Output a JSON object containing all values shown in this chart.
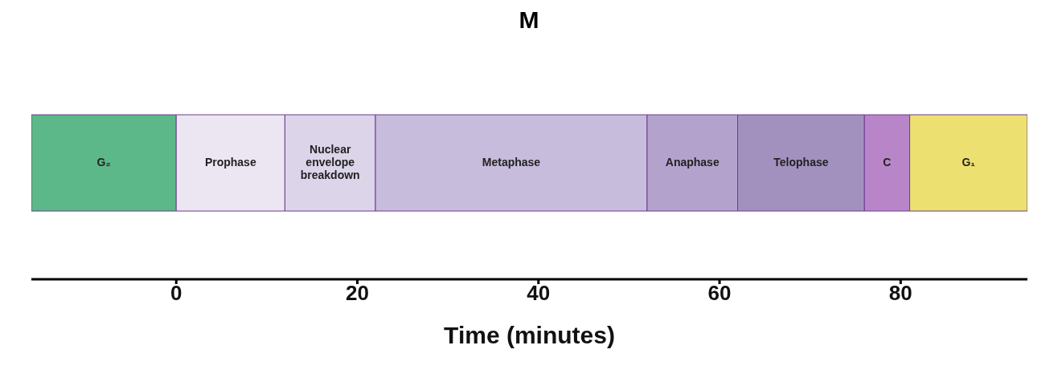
{
  "chart_data": {
    "type": "bar",
    "orientation": "horizontal",
    "title": "M",
    "xlabel": "Time (minutes)",
    "categories": [
      null
    ],
    "series": [
      {
        "name": "G₂",
        "color": "#5cb888",
        "values": [
          16
        ],
        "base": [
          -16
        ]
      },
      {
        "name": "Prophase",
        "color": "#ece6f2",
        "values": [
          12
        ],
        "base": [
          0
        ]
      },
      {
        "name": "Nuclear envelope breakdown",
        "color": "#dcd4e8",
        "values": [
          10
        ],
        "base": [
          12
        ]
      },
      {
        "name": "Metaphase",
        "color": "#c8bcdc",
        "values": [
          30
        ],
        "base": [
          22
        ]
      },
      {
        "name": "Anaphase",
        "color": "#b3a3cc",
        "values": [
          10
        ],
        "base": [
          52
        ]
      },
      {
        "name": "Telophase",
        "color": "#a291bf",
        "values": [
          14
        ],
        "base": [
          62
        ]
      },
      {
        "name": "C",
        "color": "#b886c8",
        "values": [
          5
        ],
        "base": [
          76
        ]
      },
      {
        "name": "G₁",
        "color": "#ece070",
        "values": [
          13
        ],
        "base": [
          81
        ]
      }
    ],
    "xlim": [
      -16,
      94
    ],
    "xticks": [
      0,
      20,
      40,
      60,
      80
    ],
    "grid": false,
    "legend": false
  }
}
